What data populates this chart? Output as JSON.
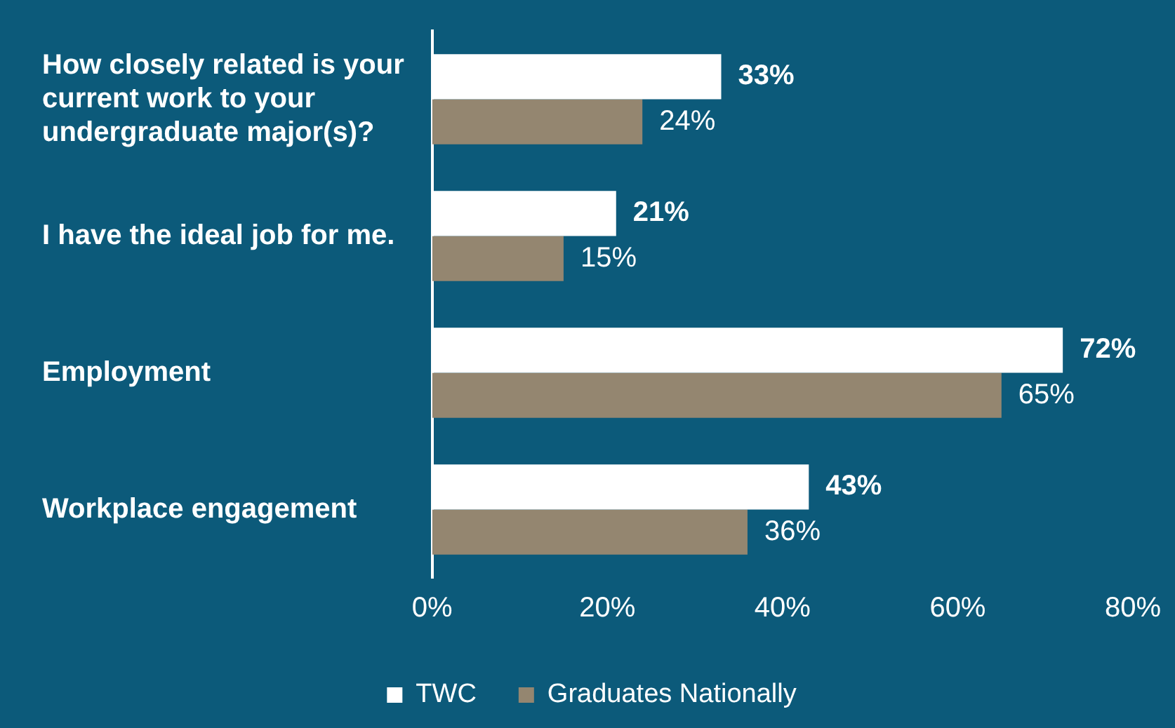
{
  "chart_data": {
    "type": "bar",
    "orientation": "horizontal",
    "categories": [
      "How closely related is your current work to your undergraduate major(s)?",
      "I have the ideal job for me.",
      "Employment",
      "Workplace engagement"
    ],
    "series": [
      {
        "name": "TWC",
        "color": "#ffffff",
        "values": [
          33,
          21,
          72,
          43
        ],
        "value_labels": [
          "33%",
          "21%",
          "72%",
          "43%"
        ]
      },
      {
        "name": "Graduates Nationally",
        "color": "#948670",
        "values": [
          24,
          15,
          65,
          36
        ],
        "value_labels": [
          "24%",
          "15%",
          "65%",
          "36%"
        ]
      }
    ],
    "xlim": [
      0,
      80
    ],
    "xticks": [
      {
        "value": 0,
        "label": "0%"
      },
      {
        "value": 20,
        "label": "20%"
      },
      {
        "value": 40,
        "label": "40%"
      },
      {
        "value": 60,
        "label": "60%"
      },
      {
        "value": 80,
        "label": "80%"
      }
    ],
    "grid": false,
    "legend": "bottom"
  }
}
